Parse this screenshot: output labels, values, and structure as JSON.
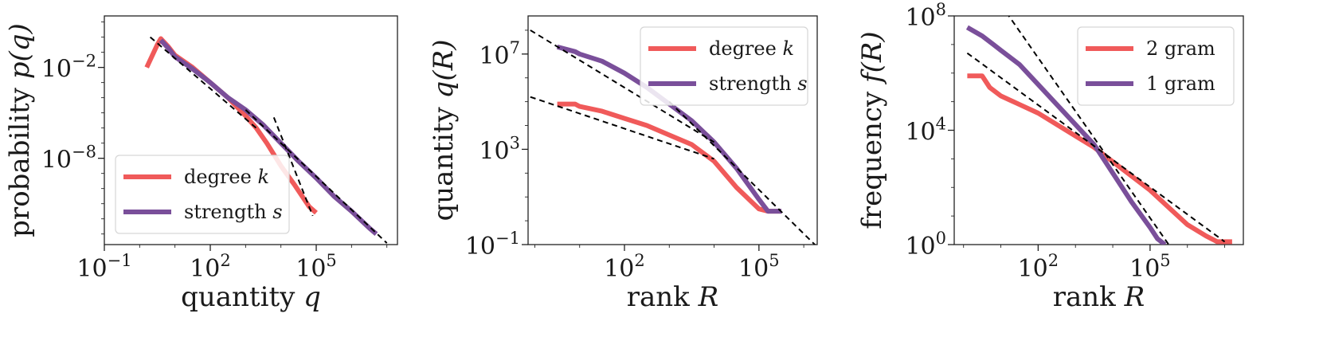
{
  "colors": {
    "red": "#f05a5a",
    "purple": "#7a4f9a",
    "fit": "#000000"
  },
  "chart_data": [
    {
      "type": "line",
      "scale": {
        "x": "log",
        "y": "log"
      },
      "title": "",
      "xlabel": "quantity q",
      "ylabel": "probability p(q)",
      "xlim_log10": [
        -1.0,
        7.3
      ],
      "ylim_log10": [
        -13.7,
        1.4
      ],
      "xticks": [
        {
          "log10": -1,
          "base": "10",
          "exp": "−1"
        },
        {
          "log10": 2,
          "base": "10",
          "exp": "2"
        },
        {
          "log10": 5,
          "base": "10",
          "exp": "5"
        }
      ],
      "yticks": [
        {
          "log10": -2,
          "base": "10",
          "exp": "−2"
        },
        {
          "log10": -8,
          "base": "10",
          "exp": "−8"
        }
      ],
      "legend": {
        "loc": "lower-left"
      },
      "series": [
        {
          "name": "degree k",
          "color": "#f05a5a",
          "points_log10": [
            [
              0.2,
              -2.0
            ],
            [
              0.5,
              -0.5
            ],
            [
              0.6,
              -0.1
            ],
            [
              0.8,
              -0.6
            ],
            [
              1.0,
              -1.2
            ],
            [
              1.5,
              -2.0
            ],
            [
              2.0,
              -3.0
            ],
            [
              2.5,
              -4.0
            ],
            [
              3.0,
              -5.2
            ],
            [
              3.3,
              -6.0
            ],
            [
              3.6,
              -7.0
            ],
            [
              4.0,
              -8.5
            ],
            [
              4.4,
              -9.8
            ],
            [
              4.8,
              -11.2
            ],
            [
              5.0,
              -11.6
            ]
          ]
        },
        {
          "name": "strength s",
          "color": "#7a4f9a",
          "points_log10": [
            [
              0.6,
              -0.2
            ],
            [
              0.8,
              -0.7
            ],
            [
              1.0,
              -1.3
            ],
            [
              1.5,
              -2.1
            ],
            [
              2.0,
              -3.0
            ],
            [
              2.5,
              -4.0
            ],
            [
              3.0,
              -4.8
            ],
            [
              3.5,
              -5.8
            ],
            [
              4.0,
              -7.0
            ],
            [
              4.5,
              -8.2
            ],
            [
              5.0,
              -9.3
            ],
            [
              5.5,
              -10.5
            ],
            [
              6.0,
              -11.5
            ],
            [
              6.5,
              -12.6
            ],
            [
              6.7,
              -13.0
            ]
          ]
        }
      ],
      "fits_log10": [
        [
          [
            0.3,
            0.0
          ],
          [
            3.3,
            -6.0
          ]
        ],
        [
          [
            3.8,
            -5.3
          ],
          [
            4.9,
            -11.8
          ]
        ],
        [
          [
            3.0,
            -4.8
          ],
          [
            7.0,
            -13.6
          ]
        ]
      ]
    },
    {
      "type": "line",
      "scale": {
        "x": "log",
        "y": "log"
      },
      "title": "",
      "xlabel": "rank R",
      "ylabel": "quantity q(R)",
      "xlim_log10": [
        -0.15,
        6.3
      ],
      "ylim_log10": [
        -1.0,
        8.6
      ],
      "xticks": [
        {
          "log10": 2,
          "base": "10",
          "exp": "2"
        },
        {
          "log10": 5,
          "base": "10",
          "exp": "5"
        }
      ],
      "yticks": [
        {
          "log10": 7,
          "base": "10",
          "exp": "7"
        },
        {
          "log10": 3,
          "base": "10",
          "exp": "3"
        },
        {
          "log10": -1,
          "base": "10",
          "exp": "−1"
        }
      ],
      "legend": {
        "loc": "upper-right"
      },
      "series": [
        {
          "name": "degree k",
          "color": "#f05a5a",
          "points_log10": [
            [
              0.5,
              4.9
            ],
            [
              0.9,
              4.9
            ],
            [
              1.0,
              4.8
            ],
            [
              1.5,
              4.6
            ],
            [
              2.0,
              4.3
            ],
            [
              2.5,
              4.0
            ],
            [
              3.0,
              3.6
            ],
            [
              3.5,
              3.2
            ],
            [
              4.0,
              2.5
            ],
            [
              4.5,
              1.4
            ],
            [
              5.0,
              0.5
            ],
            [
              5.2,
              0.4
            ],
            [
              5.5,
              0.4
            ]
          ]
        },
        {
          "name": "strength s",
          "color": "#7a4f9a",
          "points_log10": [
            [
              0.5,
              7.3
            ],
            [
              0.9,
              7.1
            ],
            [
              1.0,
              7.0
            ],
            [
              1.5,
              6.7
            ],
            [
              2.0,
              6.2
            ],
            [
              2.5,
              5.6
            ],
            [
              3.0,
              4.9
            ],
            [
              3.5,
              4.2
            ],
            [
              4.0,
              3.3
            ],
            [
              4.5,
              2.2
            ],
            [
              5.0,
              0.9
            ],
            [
              5.2,
              0.4
            ],
            [
              5.5,
              0.4
            ]
          ]
        }
      ],
      "fits_log10": [
        [
          [
            -0.1,
            8.0
          ],
          [
            4.0,
            3.3
          ]
        ],
        [
          [
            -0.1,
            5.2
          ],
          [
            4.0,
            2.6
          ]
        ],
        [
          [
            3.0,
            5.0
          ],
          [
            6.3,
            -1.1
          ]
        ]
      ]
    },
    {
      "type": "line",
      "scale": {
        "x": "log",
        "y": "log"
      },
      "title": "",
      "xlabel": "rank R",
      "ylabel": "frequency f(R)",
      "xlim_log10": [
        -0.25,
        7.5
      ],
      "ylim_log10": [
        0.0,
        8.0
      ],
      "xticks": [
        {
          "log10": 2,
          "base": "10",
          "exp": "2"
        },
        {
          "log10": 5,
          "base": "10",
          "exp": "5"
        }
      ],
      "yticks": [
        {
          "log10": 8,
          "base": "10",
          "exp": "8"
        },
        {
          "log10": 4,
          "base": "10",
          "exp": "4"
        },
        {
          "log10": 0,
          "base": "10",
          "exp": "0"
        }
      ],
      "legend": {
        "loc": "upper-right"
      },
      "series": [
        {
          "name": "2 gram",
          "color": "#f05a5a",
          "points_log10": [
            [
              0.1,
              5.9
            ],
            [
              0.5,
              5.9
            ],
            [
              0.7,
              5.5
            ],
            [
              1.0,
              5.2
            ],
            [
              1.5,
              4.9
            ],
            [
              2.0,
              4.6
            ],
            [
              2.5,
              4.2
            ],
            [
              3.0,
              3.8
            ],
            [
              3.5,
              3.4
            ],
            [
              4.0,
              2.9
            ],
            [
              4.5,
              2.4
            ],
            [
              5.0,
              1.9
            ],
            [
              5.5,
              1.3
            ],
            [
              6.0,
              0.7
            ],
            [
              6.5,
              0.3
            ],
            [
              6.8,
              0.1
            ],
            [
              7.2,
              0.1
            ]
          ]
        },
        {
          "name": "1 gram",
          "color": "#7a4f9a",
          "points_log10": [
            [
              0.1,
              7.6
            ],
            [
              0.5,
              7.3
            ],
            [
              0.8,
              7.0
            ],
            [
              1.0,
              6.8
            ],
            [
              1.5,
              6.3
            ],
            [
              2.0,
              5.6
            ],
            [
              2.5,
              4.9
            ],
            [
              3.0,
              4.2
            ],
            [
              3.5,
              3.5
            ],
            [
              4.0,
              2.5
            ],
            [
              4.5,
              1.5
            ],
            [
              5.0,
              0.6
            ],
            [
              5.2,
              0.2
            ],
            [
              5.4,
              0.0
            ]
          ]
        }
      ],
      "fits_log10": [
        [
          [
            0.1,
            6.7
          ],
          [
            7.0,
            0.1
          ]
        ],
        [
          [
            1.0,
            8.4
          ],
          [
            5.5,
            0.0
          ]
        ]
      ]
    }
  ]
}
